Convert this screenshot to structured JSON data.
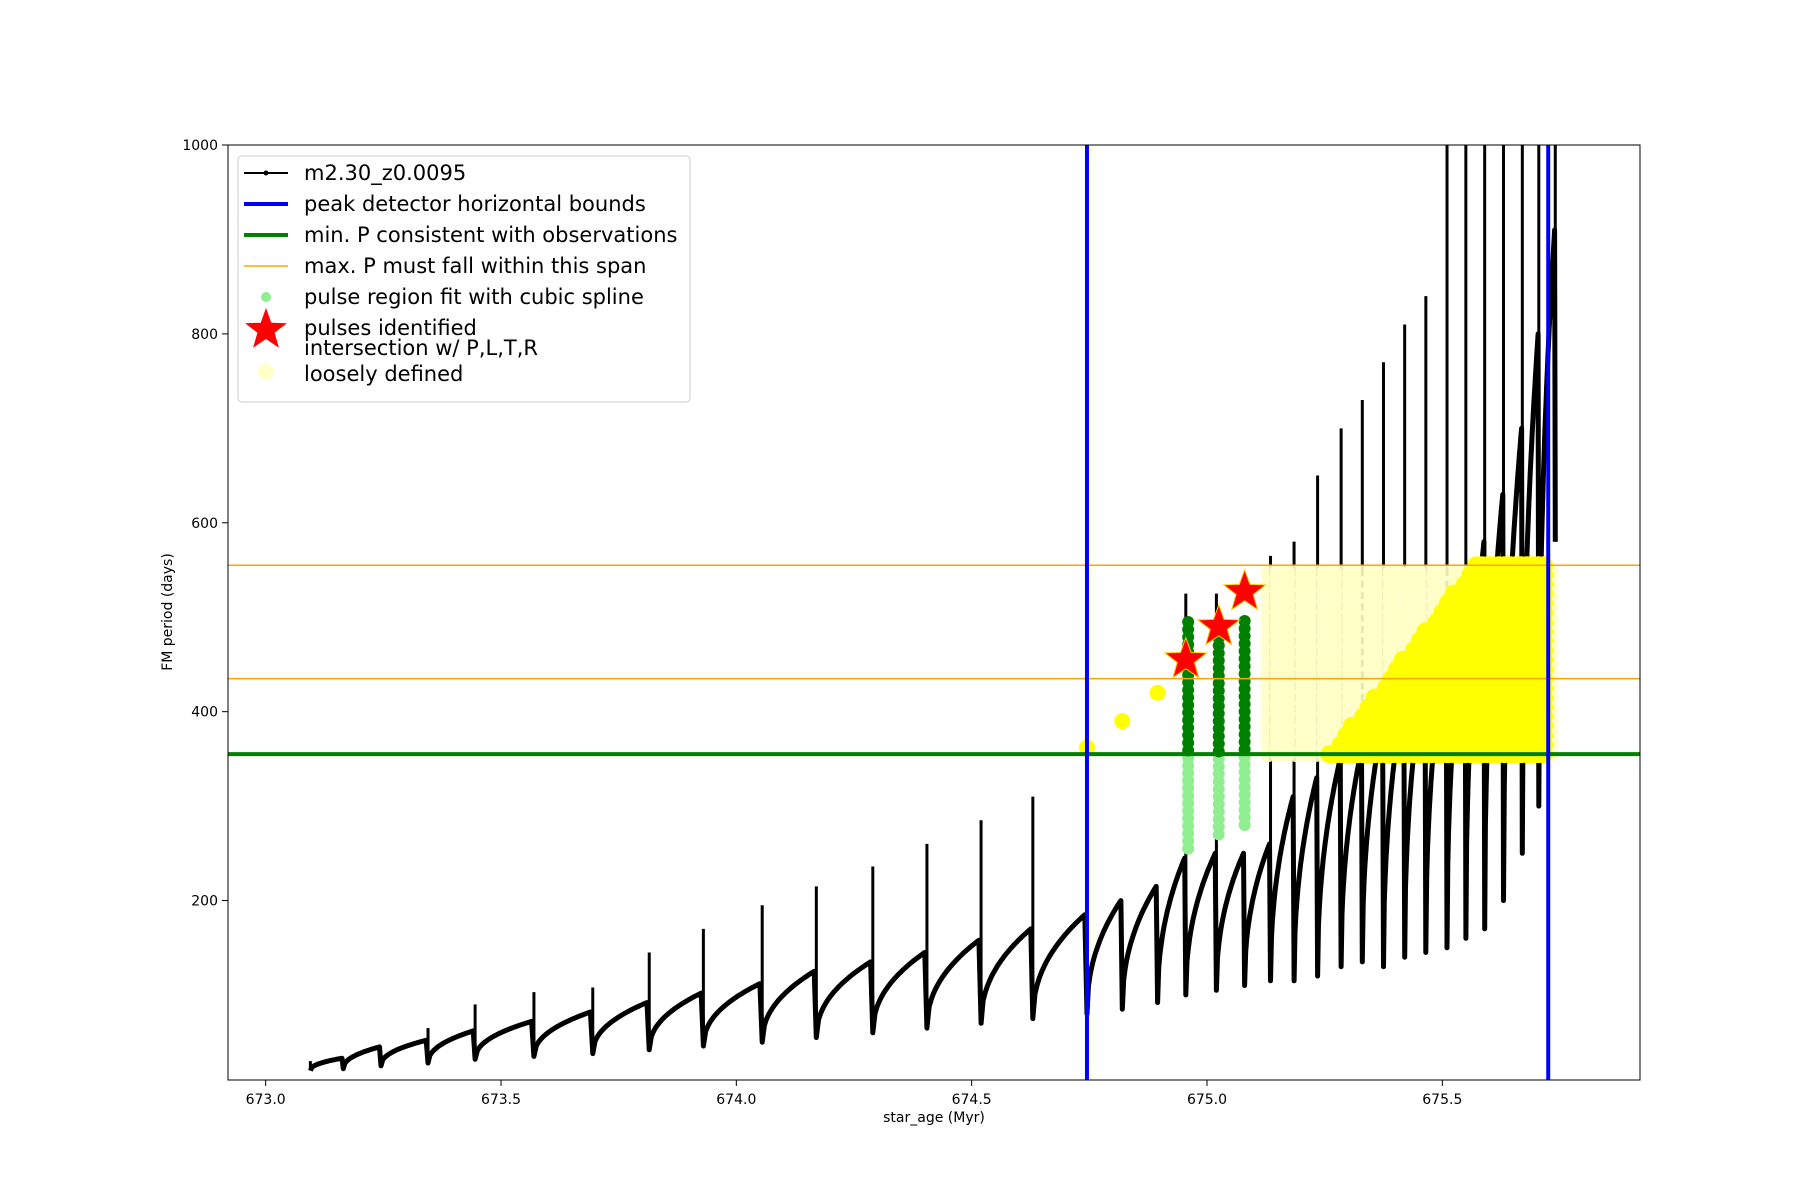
{
  "chart_data": {
    "type": "line",
    "title": "",
    "xlabel": "star_age (Myr)",
    "ylabel": "FM period (days)",
    "xlim": [
      672.92,
      675.92
    ],
    "ylim": [
      10,
      1000
    ],
    "xticks": [
      673.0,
      673.5,
      674.0,
      674.5,
      675.0,
      675.5
    ],
    "xtick_labels": [
      "673.0",
      "673.5",
      "674.0",
      "674.5",
      "675.0",
      "675.5"
    ],
    "yticks": [
      200,
      400,
      600,
      800,
      1000
    ],
    "ytick_labels": [
      "200",
      "400",
      "600",
      "800",
      "1000"
    ],
    "grid": false,
    "legend_position": "upper-left",
    "colors": {
      "track": "#000000",
      "peak_bounds": "#0000ff",
      "min_period": "#008000",
      "max_period": "#ffa500",
      "spline": "#90ee90",
      "pulses": "#ff0000",
      "intersection": "#ffff00",
      "intersection_loose": "#ffffc8"
    },
    "legend": [
      {
        "label": "m2.30_z0.0095",
        "marker": "line-dot",
        "color": "#000000"
      },
      {
        "label": "peak detector horizontal bounds",
        "marker": "line-thick",
        "color": "#0000ff"
      },
      {
        "label": "min. P consistent with observations",
        "marker": "line-thick",
        "color": "#008000"
      },
      {
        "label": "max. P must fall within this span",
        "marker": "line-thin",
        "color": "#ffa500"
      },
      {
        "label": "pulse region fit with cubic spline",
        "marker": "dot",
        "color": "#90ee90"
      },
      {
        "label": "pulses identified",
        "marker": "star",
        "color": "#ff0000"
      },
      {
        "label": "intersection w/ P,L,T,R",
        "label2": "loosely defined",
        "marker": "circle",
        "color": "#ffffc8"
      }
    ],
    "peak_detector_bounds_x": [
      674.745,
      675.725
    ],
    "min_period_y": 355,
    "max_period_span_y": [
      435,
      555
    ],
    "pulses": {
      "pulse_starts_x": [
        673.095,
        673.165,
        673.245,
        673.345,
        673.445,
        673.57,
        673.695,
        673.815,
        673.93,
        674.055,
        674.17,
        674.29,
        674.405,
        674.52,
        674.63,
        674.745,
        674.82,
        674.895,
        674.955,
        675.02,
        675.08,
        675.135,
        675.185,
        675.235,
        675.285,
        675.33,
        675.375,
        675.42,
        675.465,
        675.51,
        675.55,
        675.59,
        675.63,
        675.67,
        675.705,
        675.74
      ],
      "pulse_floor_y": [
        20,
        22,
        25,
        28,
        32,
        35,
        38,
        42,
        46,
        50,
        55,
        60,
        65,
        70,
        75,
        80,
        85,
        92,
        100,
        105,
        110,
        115,
        115,
        120,
        130,
        135,
        130,
        140,
        145,
        150,
        160,
        170,
        200,
        250,
        300,
        580
      ],
      "pulse_peak_y": [
        33,
        45,
        52,
        62,
        72,
        82,
        92,
        102,
        112,
        125,
        135,
        145,
        158,
        170,
        185,
        200,
        215,
        245,
        250,
        250,
        260,
        310,
        330,
        350,
        360,
        390,
        420,
        450,
        480,
        520,
        580,
        630,
        700,
        800,
        910,
        1000
      ],
      "spike_top_y": [
        30,
        28,
        30,
        65,
        90,
        103,
        108,
        145,
        170,
        195,
        215,
        236,
        260,
        285,
        310,
        340,
        null,
        null,
        525,
        525,
        null,
        565,
        580,
        650,
        700,
        730,
        770,
        810,
        840,
        1000,
        1000,
        1000,
        1000,
        1000,
        1000,
        1000
      ]
    },
    "spline_regions": [
      {
        "x": 674.96,
        "y_low": 255,
        "y_high": 500
      },
      {
        "x": 675.025,
        "y_low": 270,
        "y_high": 500
      },
      {
        "x": 675.08,
        "y_low": 280,
        "y_high": 500
      }
    ],
    "pulses_identified": [
      {
        "x": 674.955,
        "y": 455
      },
      {
        "x": 675.025,
        "y": 490
      },
      {
        "x": 675.08,
        "y": 527
      }
    ],
    "intersection_points": [
      {
        "x": 674.745,
        "y": 362
      },
      {
        "x": 674.82,
        "y": 390
      },
      {
        "x": 674.895,
        "y": 420
      }
    ],
    "intersection_band_region": {
      "x": [
        675.13,
        675.73
      ],
      "y": [
        355,
        555
      ]
    }
  }
}
